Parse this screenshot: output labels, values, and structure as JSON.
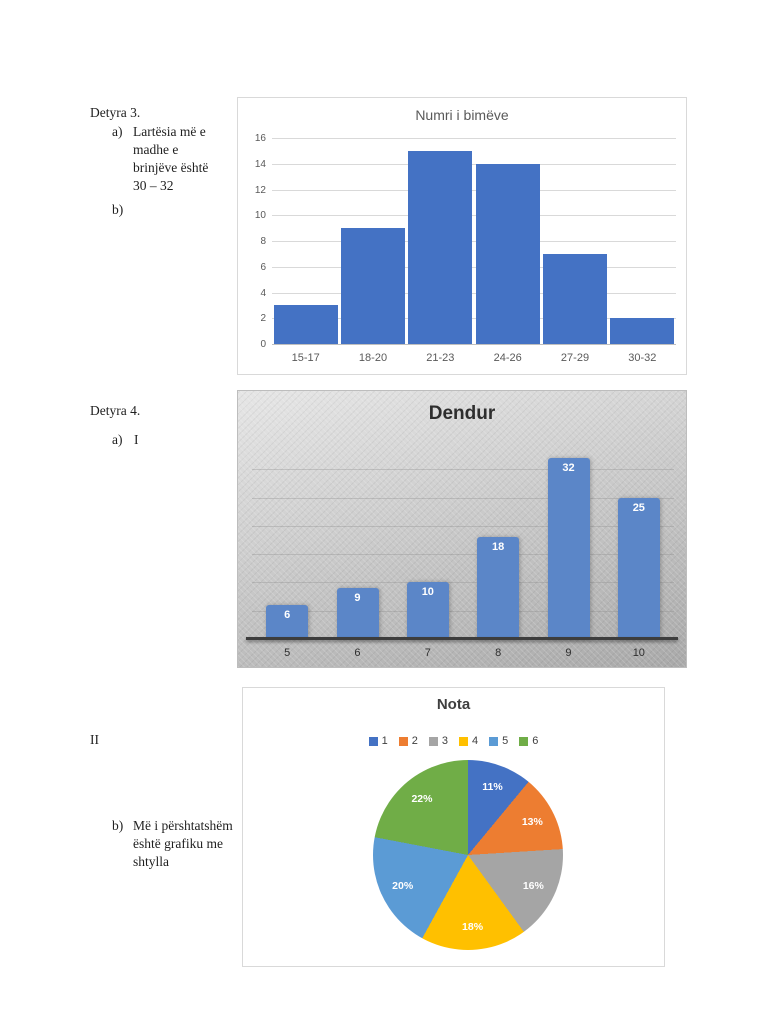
{
  "document": {
    "detyra3": {
      "heading": "Detyra 3.",
      "a_marker": "a)",
      "a_text": "Lartësia më e madhe e brinjëve është 30 – 32",
      "b_marker": "b)"
    },
    "detyra4": {
      "heading": "Detyra 4.",
      "a_marker": "a)",
      "a_text": "I",
      "ii_label": "II",
      "b_marker": "b)",
      "b_text": "Më i përshtatshëm është grafiku me shtylla"
    }
  },
  "chart_data": [
    {
      "type": "bar",
      "style": "histogram",
      "title": "Numri i bimëve",
      "categories": [
        "15-17",
        "18-20",
        "21-23",
        "24-26",
        "27-29",
        "30-32"
      ],
      "values": [
        3,
        9,
        15,
        14,
        7,
        2
      ],
      "xlabel": "",
      "ylabel": "",
      "ylim": [
        0,
        16
      ],
      "ytick_step": 2,
      "grid": true,
      "bar_color": "#4472C4",
      "legend_position": "none"
    },
    {
      "type": "bar",
      "title": "Dendur",
      "categories": [
        "5",
        "6",
        "7",
        "8",
        "9",
        "10"
      ],
      "values": [
        6,
        9,
        10,
        18,
        32,
        25
      ],
      "data_labels": [
        "6",
        "9",
        "10",
        "18",
        "32",
        "25"
      ],
      "xlabel": "",
      "ylabel": "",
      "grid": true,
      "bar_color": "#5b86c8",
      "background": "gray-gradient",
      "legend_position": "none"
    },
    {
      "type": "pie",
      "title": "Nota",
      "legend": [
        "1",
        "2",
        "3",
        "4",
        "5",
        "6"
      ],
      "values": [
        11,
        13,
        16,
        18,
        20,
        22
      ],
      "labels": [
        "11%",
        "13%",
        "16%",
        "18%",
        "20%",
        "22%"
      ],
      "colors": [
        "#4472C4",
        "#ED7D31",
        "#A5A5A5",
        "#FFC000",
        "#5B9BD5",
        "#70AD47"
      ],
      "legend_position": "top",
      "start_angle": 0,
      "direction": "clockwise"
    }
  ]
}
